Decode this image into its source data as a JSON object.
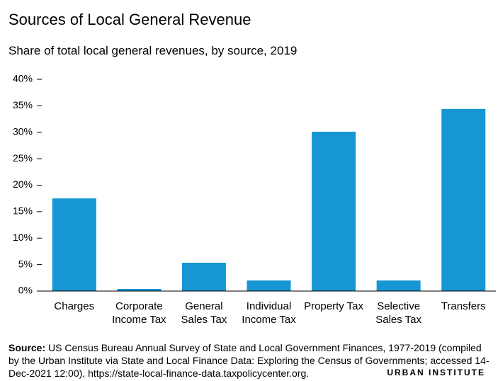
{
  "chart_data": {
    "type": "bar",
    "title": "Sources of Local General Revenue",
    "subtitle": "Share of total local general revenues, by source, 2019",
    "categories": [
      "Charges",
      "Corporate Income Tax",
      "General Sales Tax",
      "Individual Income Tax",
      "Property Tax",
      "Selective Sales Tax",
      "Transfers"
    ],
    "values": [
      17.5,
      0.4,
      5.35,
      2.0,
      30.1,
      2.0,
      34.4
    ],
    "color": "#1696d2",
    "ylim": [
      0,
      40
    ],
    "yticks": [
      {
        "value": 0,
        "label": "0%"
      },
      {
        "value": 5,
        "label": "5%"
      },
      {
        "value": 10,
        "label": "10%"
      },
      {
        "value": 15,
        "label": "15%"
      },
      {
        "value": 20,
        "label": "20%"
      },
      {
        "value": 25,
        "label": "25%"
      },
      {
        "value": 30,
        "label": "30%"
      },
      {
        "value": 35,
        "label": "35%"
      },
      {
        "value": 40,
        "label": "40%"
      }
    ],
    "grid": false,
    "source_label": "Source:",
    "source_text": "US Census Bureau Annual Survey of State and Local Government Finances, 1977-2019 (compiled by the Urban Institute via State and Local Finance Data: Exploring the Census of Governments; accessed 14-Dec-2021 12:00), https://state-local-finance-data.taxpolicycenter.org.",
    "logo": "URBAN INSTITUTE"
  }
}
